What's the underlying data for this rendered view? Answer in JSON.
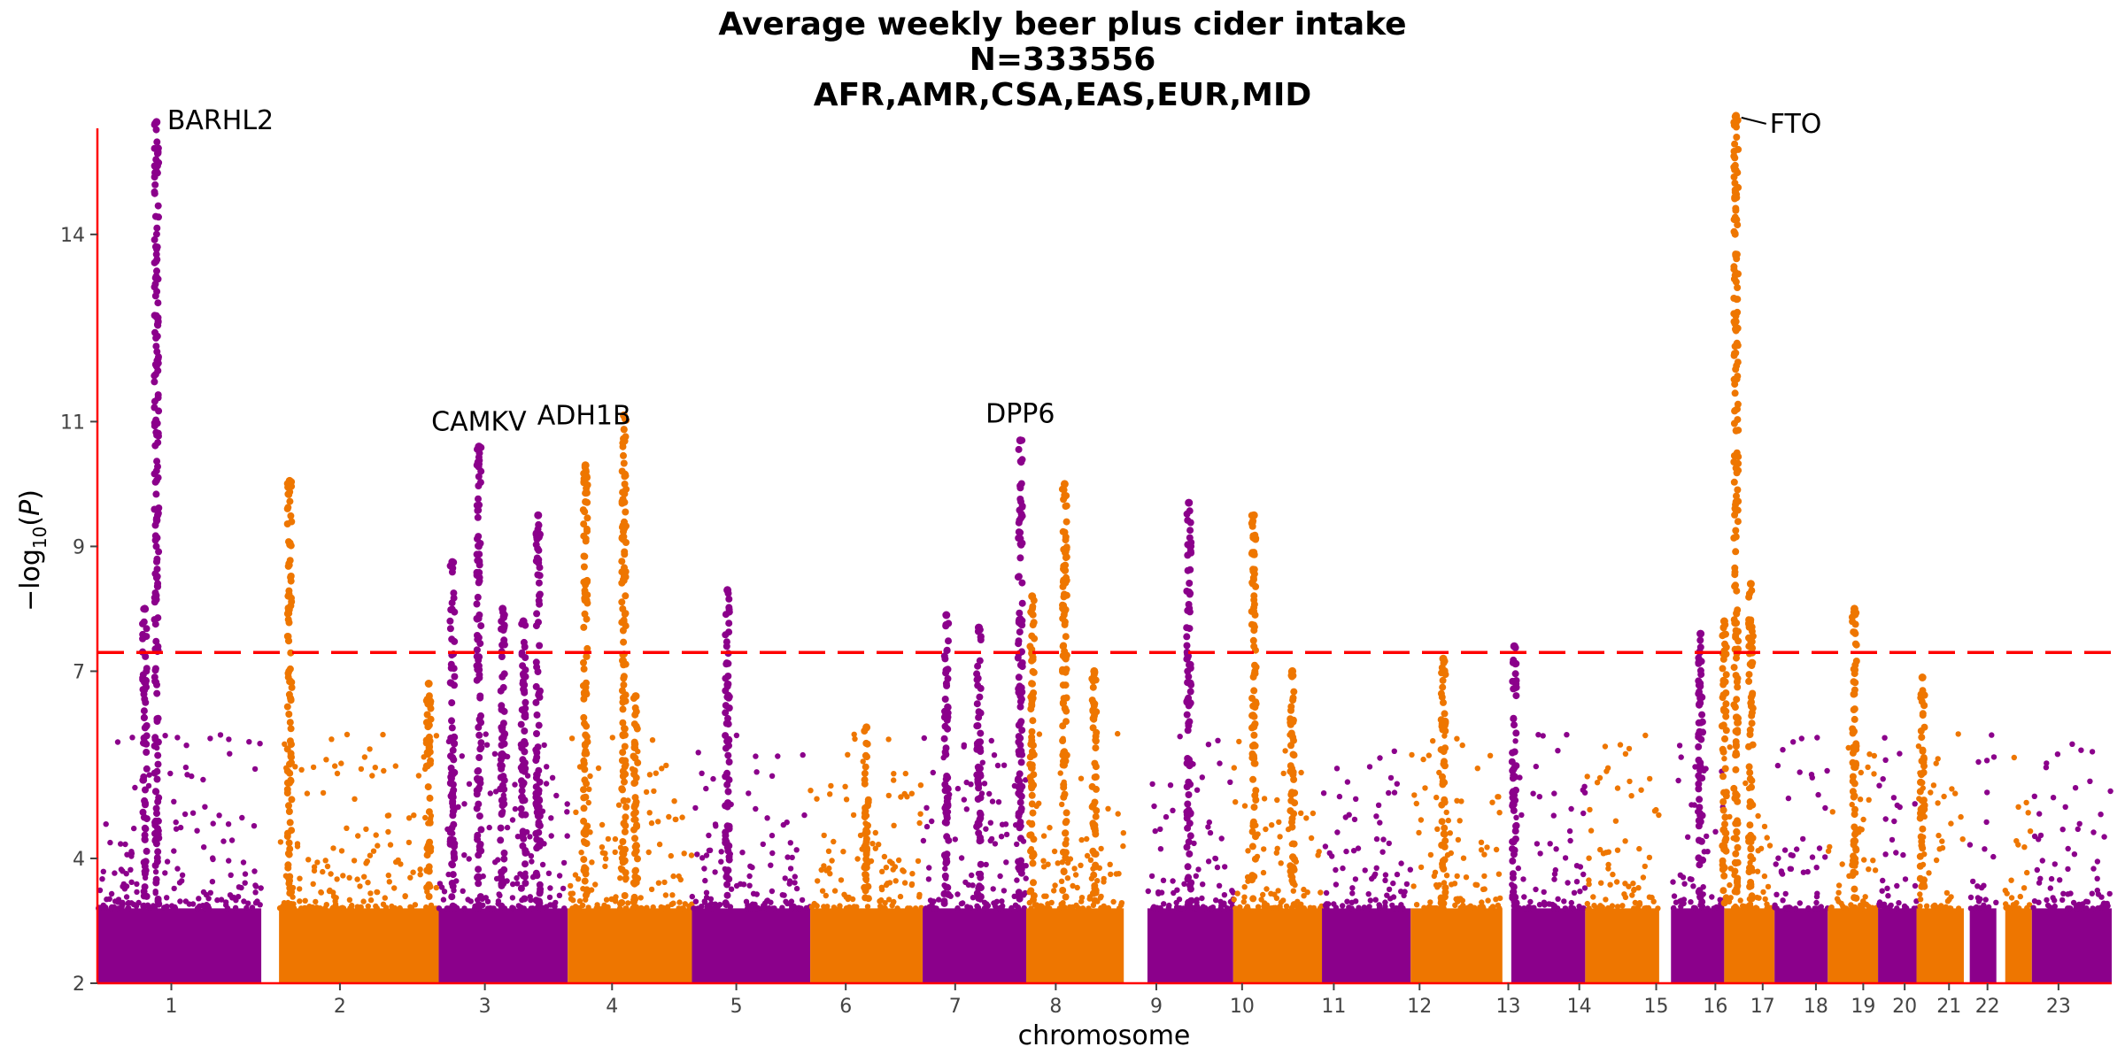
{
  "chart_data": {
    "type": "scatter",
    "subtype": "manhattan",
    "title_lines": [
      "Average weekly beer plus cider intake",
      "N=333556",
      "AFR,AMR,CSA,EAS,EUR,MID"
    ],
    "xlabel": "chromosome",
    "ylabel": "−log10(P)",
    "ylim": [
      2,
      15.7
    ],
    "yticks": [
      2,
      4,
      7,
      9,
      11,
      14
    ],
    "threshold": 7.3,
    "threshold_style": "dashed",
    "colors": {
      "odd": "#8B008B",
      "even": "#EE7600",
      "threshold": "#FF0000",
      "axis": "#FF0000"
    },
    "chromosomes": [
      {
        "label": "1",
        "x0": 0,
        "x1": 2.77,
        "tick": 1.25
      },
      {
        "label": "2",
        "x0": 3.07,
        "x1": 5.77,
        "tick": 4.1
      },
      {
        "label": "3",
        "x0": 5.77,
        "x1": 7.95,
        "tick": 6.55
      },
      {
        "label": "4",
        "x0": 7.95,
        "x1": 10.05,
        "tick": 8.7
      },
      {
        "label": "5",
        "x0": 10.05,
        "x1": 12.05,
        "tick": 10.8
      },
      {
        "label": "6",
        "x0": 12.05,
        "x1": 13.95,
        "tick": 12.65
      },
      {
        "label": "7",
        "x0": 13.95,
        "x1": 15.7,
        "tick": 14.5
      },
      {
        "label": "8",
        "x0": 15.7,
        "x1": 17.35,
        "tick": 16.2
      },
      {
        "label": "9",
        "x0": 17.75,
        "x1": 19.2,
        "tick": 17.9
      },
      {
        "label": "10",
        "x0": 19.2,
        "x1": 20.7,
        "tick": 19.35
      },
      {
        "label": "11",
        "x0": 20.7,
        "x1": 22.2,
        "tick": 20.9
      },
      {
        "label": "12",
        "x0": 22.2,
        "x1": 23.75,
        "tick": 22.35
      },
      {
        "label": "13",
        "x0": 23.9,
        "x1": 25.15,
        "tick": 23.85
      },
      {
        "label": "14",
        "x0": 25.15,
        "x1": 26.4,
        "tick": 25.05
      },
      {
        "label": "15",
        "x0": 26.6,
        "x1": 27.5,
        "tick": 26.35
      },
      {
        "label": "16",
        "x0": 27.5,
        "x1": 28.35,
        "tick": 27.35
      },
      {
        "label": "17",
        "x0": 28.35,
        "x1": 29.25,
        "tick": 28.15
      },
      {
        "label": "18",
        "x0": 29.25,
        "x1": 30.1,
        "tick": 29.05
      },
      {
        "label": "19",
        "x0": 30.1,
        "x1": 30.75,
        "tick": 29.85
      },
      {
        "label": "20",
        "x0": 30.75,
        "x1": 31.55,
        "tick": 30.55
      },
      {
        "label": "21",
        "x0": 31.65,
        "x1": 32.1,
        "tick": 31.3
      },
      {
        "label": "22",
        "x0": 32.25,
        "x1": 32.7,
        "tick": 31.95
      },
      {
        "label": "23",
        "x0": 32.7,
        "x1": 34.05,
        "tick": 33.15
      }
    ],
    "peaks": [
      {
        "x": 1.0,
        "top": 15.8
      },
      {
        "x": 0.8,
        "top": 8.0
      },
      {
        "x": 3.25,
        "top": 10.05
      },
      {
        "x": 5.6,
        "top": 6.8
      },
      {
        "x": 6.0,
        "top": 8.75
      },
      {
        "x": 6.45,
        "top": 10.6
      },
      {
        "x": 6.85,
        "top": 8.0
      },
      {
        "x": 7.2,
        "top": 7.8
      },
      {
        "x": 7.45,
        "top": 9.5
      },
      {
        "x": 8.25,
        "top": 10.3
      },
      {
        "x": 8.9,
        "top": 11.1
      },
      {
        "x": 9.1,
        "top": 6.6
      },
      {
        "x": 10.65,
        "top": 8.3
      },
      {
        "x": 13.0,
        "top": 6.1
      },
      {
        "x": 14.35,
        "top": 7.9
      },
      {
        "x": 14.9,
        "top": 7.7
      },
      {
        "x": 15.6,
        "top": 10.7
      },
      {
        "x": 15.8,
        "top": 8.2
      },
      {
        "x": 16.35,
        "top": 10.0
      },
      {
        "x": 16.85,
        "top": 7.0
      },
      {
        "x": 18.45,
        "top": 9.7
      },
      {
        "x": 19.55,
        "top": 9.5
      },
      {
        "x": 20.2,
        "top": 7.0
      },
      {
        "x": 22.75,
        "top": 7.2
      },
      {
        "x": 23.95,
        "top": 7.4
      },
      {
        "x": 27.1,
        "top": 7.6
      },
      {
        "x": 27.5,
        "top": 7.8
      },
      {
        "x": 27.7,
        "top": 15.9
      },
      {
        "x": 27.95,
        "top": 8.4
      },
      {
        "x": 29.7,
        "top": 8.0
      },
      {
        "x": 30.85,
        "top": 6.9
      }
    ],
    "labels": [
      {
        "text": "BARHL2",
        "x": 1.0,
        "y": 15.8
      },
      {
        "text": "CAMKV",
        "x": 6.45,
        "y": 10.6
      },
      {
        "text": "ADH1B",
        "x": 8.9,
        "y": 11.1
      },
      {
        "text": "DPP6",
        "x": 15.6,
        "y": 10.7
      },
      {
        "text": "FTO",
        "x": 27.7,
        "y": 15.9
      }
    ]
  }
}
